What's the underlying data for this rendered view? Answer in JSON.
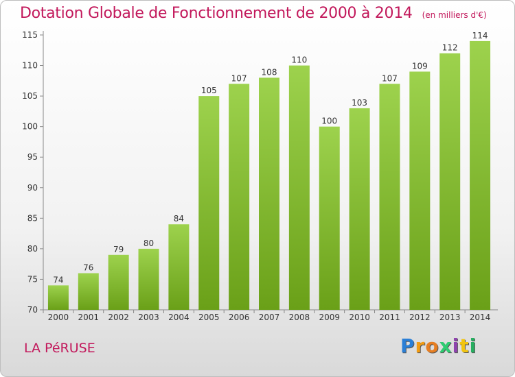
{
  "header": {
    "title": "Dotation Globale de Fonctionnement de 2000 à 2014",
    "subtitle": "(en milliers d'€)"
  },
  "footer": {
    "commune": "LA PéRUSE",
    "logo": "Proxiti"
  },
  "colors": {
    "title": "#c2185b",
    "bar_light": "#9dd24d",
    "bar_dark": "#6aa018",
    "axis": "#888888",
    "grid": "#cccccc"
  },
  "chart_data": {
    "type": "bar",
    "categories": [
      "2000",
      "2001",
      "2002",
      "2003",
      "2004",
      "2005",
      "2006",
      "2007",
      "2008",
      "2009",
      "2010",
      "2011",
      "2012",
      "2013",
      "2014"
    ],
    "values": [
      74,
      76,
      79,
      80,
      84,
      105,
      107,
      108,
      110,
      100,
      103,
      107,
      109,
      112,
      114
    ],
    "title": "Dotation Globale de Fonctionnement de 2000 à 2014",
    "subtitle": "(en milliers d'€)",
    "xlabel": "",
    "ylabel": "",
    "ylim": [
      70,
      115
    ],
    "yticks": [
      70,
      75,
      80,
      85,
      90,
      95,
      100,
      105,
      110,
      115
    ],
    "data_labels": true,
    "grid": false
  }
}
